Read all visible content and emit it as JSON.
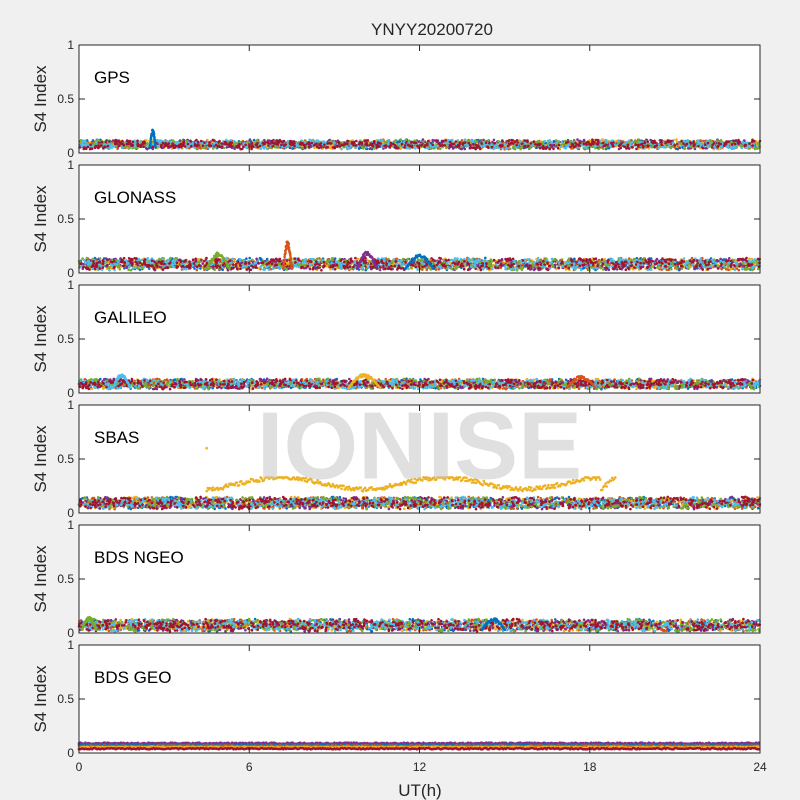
{
  "figure": {
    "title": "YNYY20200720",
    "xlabel": "UT(h)",
    "ylabel": "S4 Index",
    "watermark": "IONISE"
  },
  "colors": {
    "axes_bg": "#ffffff",
    "figure_bg": "#f0f0f0",
    "axis": "#262626",
    "palette": [
      "#0072BD",
      "#D95319",
      "#EDB120",
      "#7E2F8E",
      "#77AC30",
      "#4DBEEE",
      "#A2142F"
    ]
  },
  "chart_data": [
    {
      "type": "scatter",
      "name": "GPS",
      "xlim": [
        0,
        24
      ],
      "ylim": [
        0,
        1
      ],
      "xticks": [
        0,
        6,
        12,
        18,
        24
      ],
      "yticks": [
        0,
        0.5,
        1
      ],
      "series_count": 7,
      "baseline_min": 0.05,
      "baseline_max": 0.12,
      "highlights": [
        {
          "x_start": 2.5,
          "x_end": 2.7,
          "peak": 0.22
        }
      ]
    },
    {
      "type": "scatter",
      "name": "GLONASS",
      "xlim": [
        0,
        24
      ],
      "ylim": [
        0,
        1
      ],
      "xticks": [
        0,
        6,
        12,
        18,
        24
      ],
      "yticks": [
        0,
        0.5,
        1
      ],
      "series_count": 7,
      "baseline_min": 0.04,
      "baseline_max": 0.14,
      "highlights": [
        {
          "x_start": 7.2,
          "x_end": 7.5,
          "peak": 0.3
        },
        {
          "x_start": 4.5,
          "x_end": 5.3,
          "peak": 0.19
        },
        {
          "x_start": 11.5,
          "x_end": 12.5,
          "peak": 0.17
        },
        {
          "x_start": 9.8,
          "x_end": 10.5,
          "peak": 0.2
        }
      ]
    },
    {
      "type": "scatter",
      "name": "GALILEO",
      "xlim": [
        0,
        24
      ],
      "ylim": [
        0,
        1
      ],
      "xticks": [
        0,
        6,
        12,
        18,
        24
      ],
      "yticks": [
        0,
        0.5,
        1
      ],
      "series_count": 7,
      "baseline_min": 0.05,
      "baseline_max": 0.13,
      "highlights": [
        {
          "x_start": 9.5,
          "x_end": 10.6,
          "peak": 0.18
        },
        {
          "x_start": 1.2,
          "x_end": 1.8,
          "peak": 0.18
        },
        {
          "x_start": 17.2,
          "x_end": 18.2,
          "peak": 0.16
        }
      ]
    },
    {
      "type": "scatter",
      "name": "SBAS",
      "xlim": [
        0,
        24
      ],
      "ylim": [
        0,
        1
      ],
      "xticks": [
        0,
        6,
        12,
        18,
        24
      ],
      "yticks": [
        0,
        0.5,
        1
      ],
      "series_count": 7,
      "baseline_min": 0.05,
      "baseline_max": 0.15,
      "elevated_track": {
        "x_start": 4.5,
        "x_end": 18.9,
        "level_min": 0.22,
        "level_max": 0.33,
        "color_index": 2
      },
      "outlier": {
        "x": 4.5,
        "y": 0.6
      }
    },
    {
      "type": "scatter",
      "name": "BDS NGEO",
      "xlim": [
        0,
        24
      ],
      "ylim": [
        0,
        1
      ],
      "xticks": [
        0,
        6,
        12,
        18,
        24
      ],
      "yticks": [
        0,
        0.5,
        1
      ],
      "series_count": 7,
      "baseline_min": 0.03,
      "baseline_max": 0.13,
      "highlights": [
        {
          "x_start": 0.1,
          "x_end": 0.6,
          "peak": 0.15
        },
        {
          "x_start": 14.2,
          "x_end": 15.0,
          "peak": 0.14
        }
      ]
    },
    {
      "type": "scatter",
      "name": "BDS GEO",
      "xlim": [
        0,
        24
      ],
      "ylim": [
        0,
        1
      ],
      "xticks": [
        0,
        6,
        12,
        18,
        24
      ],
      "yticks": [
        0,
        0.5,
        1
      ],
      "series_count": 5,
      "baseline_min": 0.04,
      "baseline_max": 0.09,
      "highlights": []
    }
  ]
}
